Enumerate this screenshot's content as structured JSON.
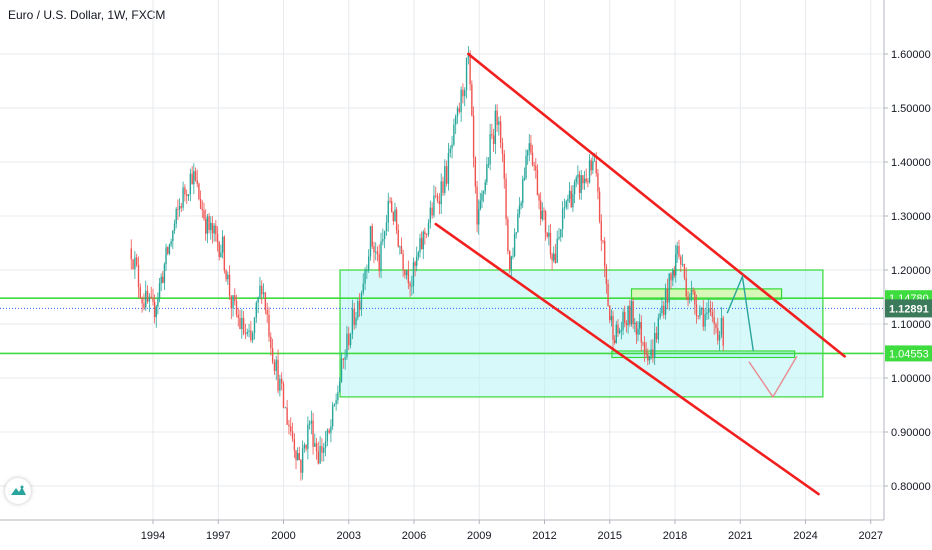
{
  "header": {
    "title": "Euro / U.S. Dollar, 1W, FXCM"
  },
  "colors": {
    "up": "#26a69a",
    "down": "#ef5350",
    "channel": "#f21f1f",
    "zone_fill": "#b8f4f4",
    "zone_border": "#35d935",
    "level_line": "#3fdc3f",
    "current_price": "#2962ff",
    "grid": "#e7e9ee"
  },
  "icons": {
    "logo": "tradingview-logo-icon"
  },
  "chart_data": {
    "type": "candlestick",
    "title": "Euro / U.S. Dollar, 1W, FXCM",
    "x_ticks": [
      "1994",
      "1997",
      "2000",
      "2003",
      "2006",
      "2009",
      "2012",
      "2015",
      "2018",
      "2021",
      "2024",
      "2027"
    ],
    "y_ticks": [
      "0.80000",
      "0.90000",
      "1.00000",
      "1.10000",
      "1.20000",
      "1.30000",
      "1.40000",
      "1.50000",
      "1.60000"
    ],
    "ylim": [
      0.765,
      1.67
    ],
    "xlim": [
      1987.0,
      2028.5
    ],
    "grid": true,
    "price_path": [
      [
        1993.0,
        1.24
      ],
      [
        1993.5,
        1.15
      ],
      [
        1994.0,
        1.12
      ],
      [
        1994.6,
        1.22
      ],
      [
        1995.3,
        1.33
      ],
      [
        1995.8,
        1.38
      ],
      [
        1996.5,
        1.28
      ],
      [
        1997.2,
        1.24
      ],
      [
        1997.6,
        1.14
      ],
      [
        1998.0,
        1.1
      ],
      [
        1998.5,
        1.06
      ],
      [
        1999.0,
        1.18
      ],
      [
        1999.5,
        1.05
      ],
      [
        2000.0,
        0.95
      ],
      [
        2000.5,
        0.88
      ],
      [
        2000.8,
        0.84
      ],
      [
        2001.2,
        0.92
      ],
      [
        2001.6,
        0.86
      ],
      [
        2002.1,
        0.89
      ],
      [
        2002.5,
        0.98
      ],
      [
        2003.0,
        1.08
      ],
      [
        2003.5,
        1.15
      ],
      [
        2004.0,
        1.26
      ],
      [
        2004.4,
        1.21
      ],
      [
        2004.9,
        1.33
      ],
      [
        2005.5,
        1.22
      ],
      [
        2005.9,
        1.18
      ],
      [
        2006.5,
        1.27
      ],
      [
        2007.0,
        1.33
      ],
      [
        2007.5,
        1.38
      ],
      [
        2008.0,
        1.48
      ],
      [
        2008.5,
        1.59
      ],
      [
        2008.9,
        1.27
      ],
      [
        2009.5,
        1.43
      ],
      [
        2009.9,
        1.5
      ],
      [
        2010.4,
        1.2
      ],
      [
        2011.3,
        1.45
      ],
      [
        2011.9,
        1.3
      ],
      [
        2012.5,
        1.22
      ],
      [
        2013.0,
        1.33
      ],
      [
        2014.3,
        1.39
      ],
      [
        2015.0,
        1.11
      ],
      [
        2015.3,
        1.08
      ],
      [
        2016.0,
        1.12
      ],
      [
        2016.9,
        1.04
      ],
      [
        2017.4,
        1.13
      ],
      [
        2017.9,
        1.19
      ],
      [
        2018.1,
        1.24
      ],
      [
        2018.6,
        1.16
      ],
      [
        2019.3,
        1.12
      ],
      [
        2019.8,
        1.1
      ],
      [
        2020.3,
        1.08
      ]
    ],
    "channel": {
      "upper": {
        "from": [
          2008.5,
          1.6
        ],
        "to": [
          2025.8,
          1.04
        ]
      },
      "lower": {
        "from": [
          2007.0,
          1.285
        ],
        "to": [
          2024.6,
          0.785
        ]
      }
    },
    "zones": [
      {
        "from": [
          2002.6,
          1.2
        ],
        "to": [
          2024.8,
          0.965
        ]
      },
      {
        "from": [
          2016.0,
          1.165
        ],
        "to": [
          2022.9,
          1.146
        ]
      },
      {
        "from": [
          2015.1,
          1.05
        ],
        "to": [
          2023.5,
          1.038
        ]
      }
    ],
    "horizontal_levels": [
      {
        "value": 1.1478,
        "label": "1.14780"
      },
      {
        "value": 1.04553,
        "label": "1.04553"
      }
    ],
    "current_price": {
      "value": 1.12891,
      "label": "1.12891"
    },
    "projections": [
      {
        "color": "#2aa59d",
        "points": [
          [
            2020.4,
            1.12
          ],
          [
            2021.1,
            1.188
          ],
          [
            2021.6,
            1.05
          ]
        ]
      },
      {
        "color": "#e88b93",
        "points": [
          [
            2021.4,
            1.03
          ],
          [
            2022.5,
            0.965
          ],
          [
            2023.6,
            1.04
          ]
        ]
      }
    ]
  }
}
